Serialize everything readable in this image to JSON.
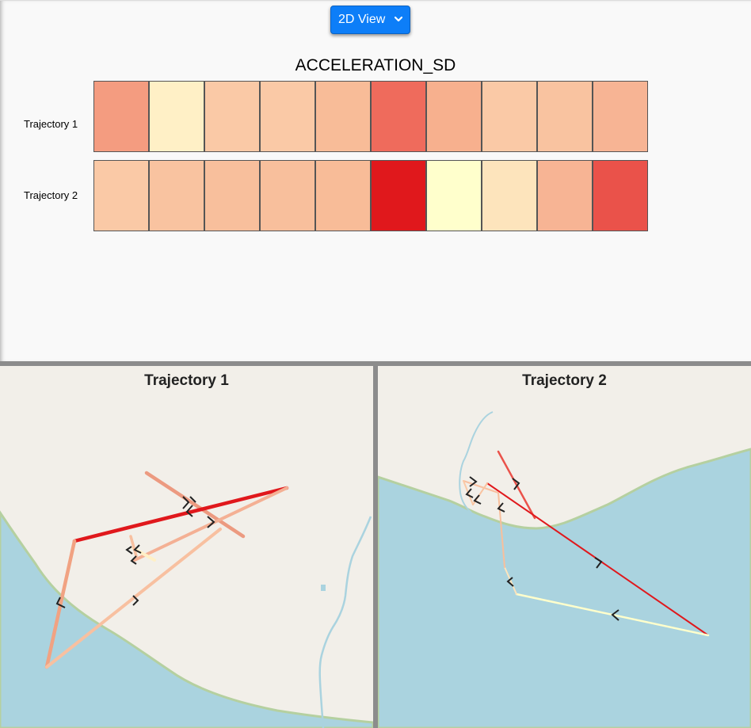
{
  "view_select": {
    "value": "2D View"
  },
  "chart_data": {
    "type": "heatmap",
    "title": "ACCELERATION_SD",
    "rows": [
      "Trajectory 1",
      "Trajectory 2"
    ],
    "values": [
      [
        "#f49c80",
        "#fff0c6",
        "#fac9a6",
        "#fac9a6",
        "#f8bc98",
        "#ef6b5c",
        "#f7b08e",
        "#fac9a6",
        "#f9c3a0",
        "#f7b494"
      ],
      [
        "#fac9a6",
        "#f9c3a0",
        "#f8bf9c",
        "#f8bf9c",
        "#f8bc98",
        "#e0181c",
        "#ffffcc",
        "#fde4bc",
        "#f7b494",
        "#ea524a"
      ]
    ]
  },
  "maps": [
    {
      "title": "Trajectory 1"
    },
    {
      "title": "Trajectory 2"
    }
  ],
  "colors": {
    "water": "#aad3df",
    "land": "#f2efe9",
    "coast": "#b5d0a0",
    "divider": "#8c8c8c",
    "button": "#0d7ef8"
  }
}
